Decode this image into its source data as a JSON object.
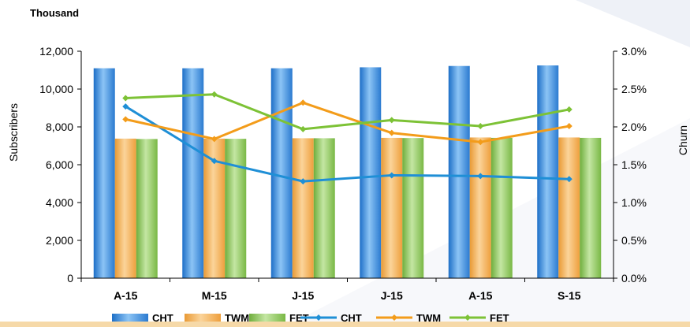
{
  "chart_data": {
    "type": "bar+line",
    "categories": [
      "A-15",
      "M-15",
      "J-15",
      "J-15",
      "A-15",
      "S-15"
    ],
    "unit_label": "Thousand",
    "left_axis": {
      "title": "Subscribers",
      "range": [
        0,
        12000
      ],
      "ticks": [
        "0",
        "2,000",
        "4,000",
        "6,000",
        "8,000",
        "10,000",
        "12,000"
      ]
    },
    "right_axis": {
      "title": "Churn",
      "range": [
        0,
        3.0
      ],
      "ticks": [
        "0.0%",
        "0.5%",
        "1.0%",
        "1.5%",
        "2.0%",
        "2.5%",
        "3.0%"
      ]
    },
    "bar_series": [
      {
        "name": "CHT",
        "values": [
          11100,
          11100,
          11100,
          11150,
          11220,
          11250
        ],
        "color": "#3f8fe0",
        "axis": "left"
      },
      {
        "name": "TWM",
        "values": [
          7380,
          7380,
          7400,
          7420,
          7440,
          7440
        ],
        "color": "#f5a94a",
        "axis": "left"
      },
      {
        "name": "FET",
        "values": [
          7360,
          7370,
          7400,
          7410,
          7420,
          7420
        ],
        "color": "#8fc959",
        "axis": "left"
      }
    ],
    "line_series": [
      {
        "name": "CHT",
        "values": [
          2.27,
          1.55,
          1.28,
          1.36,
          1.35,
          1.31
        ],
        "color": "#1f8fd6",
        "axis": "right"
      },
      {
        "name": "TWM",
        "values": [
          2.1,
          1.84,
          2.32,
          1.92,
          1.8,
          2.01
        ],
        "color": "#f39c1a",
        "axis": "right"
      },
      {
        "name": "FET",
        "values": [
          2.38,
          2.43,
          1.97,
          2.09,
          2.01,
          2.23
        ],
        "color": "#7dc236",
        "axis": "right"
      }
    ],
    "legend": [
      {
        "label": "CHT",
        "kind": "bar",
        "color": "#3f8fe0"
      },
      {
        "label": "TWM",
        "kind": "bar",
        "color": "#f5a94a"
      },
      {
        "label": "FET",
        "kind": "bar",
        "color": "#8fc959"
      },
      {
        "label": "CHT",
        "kind": "line",
        "color": "#1f8fd6"
      },
      {
        "label": "TWM",
        "kind": "line",
        "color": "#f39c1a"
      },
      {
        "label": "FET",
        "kind": "line",
        "color": "#7dc236"
      }
    ],
    "legend_position": "bottom",
    "grid": false
  }
}
